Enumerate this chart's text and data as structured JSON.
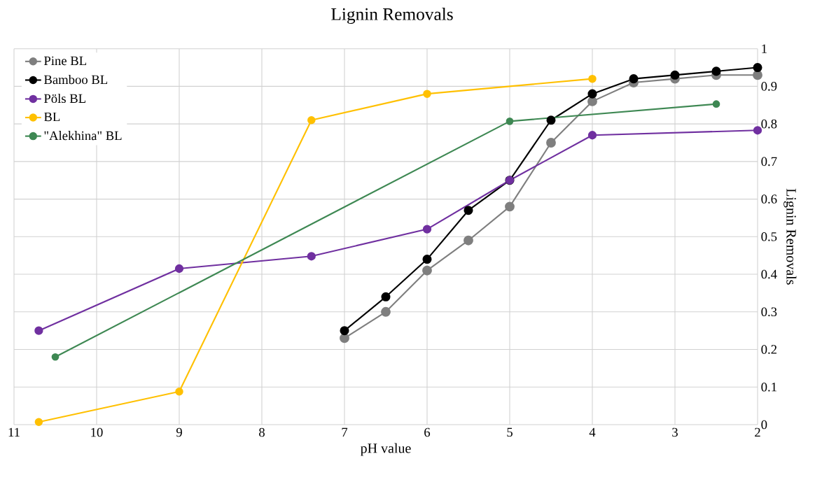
{
  "chart_data": {
    "type": "line",
    "title": "Lignin Removals",
    "xlabel": "pH value",
    "ylabel": "Lignin Removals",
    "xlim": [
      11,
      2
    ],
    "ylim": [
      0,
      1
    ],
    "xticks": [
      11,
      10,
      9,
      8,
      7,
      6,
      5,
      4,
      3,
      2
    ],
    "yticks": [
      0,
      0.1,
      0.2,
      0.3,
      0.4,
      0.5,
      0.6,
      0.7,
      0.8,
      0.9,
      1
    ],
    "grid": true,
    "legend": "top left",
    "marker": "circle",
    "line_style": "solid",
    "series": [
      {
        "name": "Pine BL",
        "color": "#7f7f7f",
        "x": [
          7,
          6.5,
          6,
          5.5,
          5,
          4.5,
          4,
          3.5,
          3,
          2.5,
          2
        ],
        "values": [
          0.23,
          0.3,
          0.41,
          0.49,
          0.58,
          0.75,
          0.86,
          0.91,
          0.92,
          0.93,
          0.93
        ]
      },
      {
        "name": "Bamboo BL",
        "color": "#000000",
        "x": [
          7,
          6.5,
          6,
          5.5,
          5,
          4.5,
          4,
          3.5,
          3,
          2.5,
          2
        ],
        "values": [
          0.25,
          0.34,
          0.44,
          0.57,
          0.65,
          0.81,
          0.88,
          0.92,
          0.93,
          0.94,
          0.95
        ]
      },
      {
        "name": "Pöls BL",
        "color": "#7030a0",
        "x": [
          10.7,
          9,
          7.4,
          6,
          5,
          4,
          2
        ],
        "values": [
          0.25,
          0.415,
          0.448,
          0.52,
          0.65,
          0.77,
          0.783
        ]
      },
      {
        "name": "BL",
        "color": "#ffc000",
        "x": [
          10.7,
          9,
          7.4,
          6,
          4
        ],
        "values": [
          0.007,
          0.088,
          0.81,
          0.88,
          0.92
        ]
      },
      {
        "name": "\"Alekhina\" BL",
        "color": "#3e8853",
        "x": [
          10.5,
          5,
          2.5
        ],
        "values": [
          0.18,
          0.807,
          0.853
        ]
      }
    ]
  }
}
